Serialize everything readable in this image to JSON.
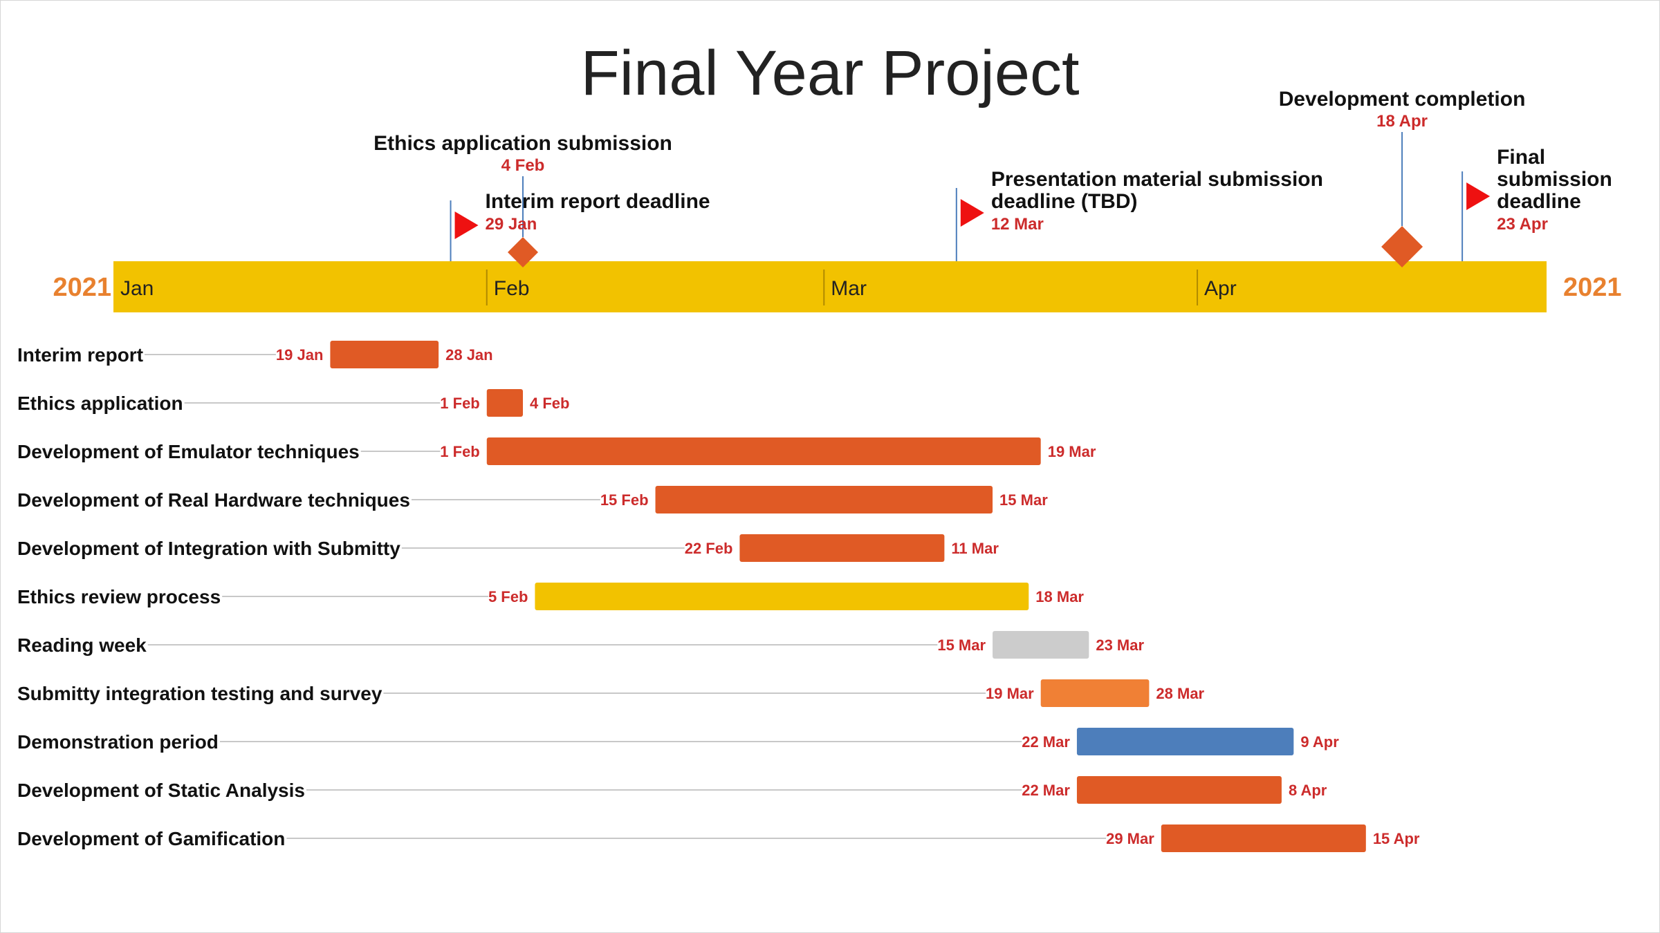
{
  "chart_data": {
    "type": "gantt",
    "title": "Final Year Project",
    "year_left": "2021",
    "year_right": "2021",
    "x_range": [
      "2021-01-01",
      "2021-04-30"
    ],
    "months": [
      {
        "label": "Jan",
        "date": "2021-01-01"
      },
      {
        "label": "Feb",
        "date": "2021-02-01"
      },
      {
        "label": "Mar",
        "date": "2021-03-01"
      },
      {
        "label": "Apr",
        "date": "2021-04-01"
      }
    ],
    "milestones": [
      {
        "name": "Ethics application submission",
        "date": "2021-02-04",
        "date_label": "4 Feb",
        "shape": "diamond",
        "color": "#E05A25"
      },
      {
        "name": "Interim report deadline",
        "date": "2021-01-29",
        "date_label": "29 Jan",
        "shape": "flag",
        "color": "#EE1111"
      },
      {
        "name": "Presentation material submission deadline (TBD)",
        "date": "2021-03-12",
        "date_label": "12 Mar",
        "shape": "flag",
        "color": "#EE1111"
      },
      {
        "name": "Development completion",
        "date": "2021-04-18",
        "date_label": "18 Apr",
        "shape": "diamond",
        "color": "#E05A25"
      },
      {
        "name": "Final submission deadline",
        "date": "2021-04-23",
        "date_label": "23 Apr",
        "shape": "flag",
        "color": "#EE1111"
      }
    ],
    "tasks": [
      {
        "name": "Interim report",
        "start": "2021-01-19",
        "end": "2021-01-28",
        "start_label": "19 Jan",
        "end_label": "28 Jan",
        "color": "#E05A25"
      },
      {
        "name": "Ethics application",
        "start": "2021-02-01",
        "end": "2021-02-04",
        "start_label": "1 Feb",
        "end_label": "4 Feb",
        "color": "#E05A25"
      },
      {
        "name": "Development of Emulator techniques",
        "start": "2021-02-01",
        "end": "2021-03-19",
        "start_label": "1 Feb",
        "end_label": "19 Mar",
        "color": "#E05A25"
      },
      {
        "name": "Development of Real Hardware techniques",
        "start": "2021-02-15",
        "end": "2021-03-15",
        "start_label": "15 Feb",
        "end_label": "15 Mar",
        "color": "#E05A25"
      },
      {
        "name": "Development of Integration with Submitty",
        "start": "2021-02-22",
        "end": "2021-03-11",
        "start_label": "22 Feb",
        "end_label": "11 Mar",
        "color": "#E05A25"
      },
      {
        "name": "Ethics review process",
        "start": "2021-02-05",
        "end": "2021-03-18",
        "start_label": "5 Feb",
        "end_label": "18 Mar",
        "color": "#F2C200"
      },
      {
        "name": "Reading week",
        "start": "2021-03-15",
        "end": "2021-03-23",
        "start_label": "15 Mar",
        "end_label": "23 Mar",
        "color": "#CCCCCC"
      },
      {
        "name": "Submitty integration testing and survey",
        "start": "2021-03-19",
        "end": "2021-03-28",
        "start_label": "19 Mar",
        "end_label": "28 Mar",
        "color": "#F08035"
      },
      {
        "name": "Demonstration period",
        "start": "2021-03-22",
        "end": "2021-04-09",
        "start_label": "22 Mar",
        "end_label": "9 Apr",
        "color": "#4D7EBB"
      },
      {
        "name": "Development of Static Analysis",
        "start": "2021-03-22",
        "end": "2021-04-08",
        "start_label": "22 Mar",
        "end_label": "8 Apr",
        "color": "#E05A25"
      },
      {
        "name": "Development of Gamification",
        "start": "2021-03-29",
        "end": "2021-04-15",
        "start_label": "29 Mar",
        "end_label": "15 Apr",
        "color": "#E05A25"
      }
    ]
  },
  "colors": {
    "timeline_band": "#F2C200",
    "year_text": "#E8812F",
    "date_text": "#CC2B2B",
    "connector": "#C8C8C8",
    "stem": "#4D7EBB",
    "month_divider": "#B08A00"
  }
}
